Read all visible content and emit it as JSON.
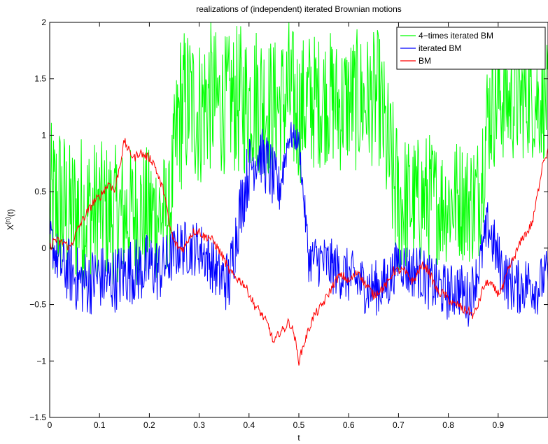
{
  "chart_data": {
    "type": "line",
    "title": "realizations of (independent) iterated Brownian motions",
    "xlabel": "t",
    "ylabel": "X",
    "ylabel_sup": "(n)",
    "ylabel_suffix": "(t)",
    "xlim": [
      0,
      1
    ],
    "ylim": [
      -1.5,
      2
    ],
    "xticks": [
      0,
      0.1,
      0.2,
      0.3,
      0.4,
      0.5,
      0.6,
      0.7,
      0.8,
      0.9
    ],
    "xtick_labels": [
      "0",
      "0.1",
      "0.2",
      "0.3",
      "0.4",
      "0.5",
      "0.6",
      "0.7",
      "0.8",
      "0.9"
    ],
    "yticks": [
      -1.5,
      -1,
      -0.5,
      0,
      0.5,
      1,
      1.5,
      2
    ],
    "ytick_labels": [
      "−1.5",
      "−1",
      "−0.5",
      "0",
      "0.5",
      "1",
      "1.5",
      "2"
    ],
    "grid": false,
    "legend_position": "top-right",
    "series": [
      {
        "name": "4−times iterated BM",
        "color": "#00ff00",
        "x": [
          0,
          0.02,
          0.04,
          0.06,
          0.08,
          0.1,
          0.12,
          0.14,
          0.16,
          0.18,
          0.2,
          0.22,
          0.24,
          0.26,
          0.28,
          0.3,
          0.32,
          0.34,
          0.36,
          0.38,
          0.4,
          0.42,
          0.44,
          0.46,
          0.48,
          0.5,
          0.52,
          0.54,
          0.56,
          0.58,
          0.6,
          0.62,
          0.64,
          0.66,
          0.68,
          0.7,
          0.72,
          0.74,
          0.76,
          0.78,
          0.8,
          0.82,
          0.84,
          0.86,
          0.88,
          0.9,
          0.92,
          0.94,
          0.96,
          0.98,
          1.0
        ],
        "y": [
          0.3,
          0.4,
          0.25,
          0.35,
          0.3,
          0.35,
          0.3,
          0.3,
          0.3,
          0.3,
          0.3,
          0.3,
          0.3,
          1.2,
          1.3,
          1.2,
          1.35,
          1.25,
          1.3,
          1.3,
          1.3,
          1.35,
          1.25,
          1.25,
          1.35,
          1.2,
          1.3,
          1.3,
          1.35,
          1.25,
          1.3,
          1.3,
          1.3,
          1.35,
          0.8,
          0.4,
          0.4,
          0.4,
          0.45,
          0.4,
          0.4,
          0.45,
          0.4,
          0.45,
          1.2,
          1.35,
          1.3,
          1.3,
          1.35,
          1.3,
          1.3
        ],
        "band": [
          0.8,
          0.8,
          0.7,
          0.7,
          0.7,
          0.6,
          0.65,
          0.6,
          0.6,
          0.65,
          0.6,
          0.6,
          0.5,
          0.75,
          0.7,
          0.7,
          0.7,
          0.65,
          0.6,
          0.7,
          0.65,
          0.7,
          0.65,
          0.6,
          0.7,
          0.65,
          0.65,
          0.6,
          0.6,
          0.6,
          0.6,
          0.65,
          0.6,
          0.6,
          0.7,
          0.7,
          0.6,
          0.6,
          0.6,
          0.55,
          0.55,
          0.55,
          0.55,
          0.6,
          0.6,
          0.6,
          0.55,
          0.55,
          0.55,
          0.55,
          0.5
        ]
      },
      {
        "name": "iterated BM",
        "color": "#0000ff",
        "x": [
          0,
          0.02,
          0.04,
          0.06,
          0.08,
          0.1,
          0.12,
          0.14,
          0.16,
          0.18,
          0.2,
          0.22,
          0.24,
          0.26,
          0.28,
          0.3,
          0.32,
          0.34,
          0.36,
          0.38,
          0.4,
          0.42,
          0.44,
          0.46,
          0.48,
          0.5,
          0.52,
          0.54,
          0.56,
          0.58,
          0.6,
          0.62,
          0.64,
          0.66,
          0.68,
          0.7,
          0.72,
          0.74,
          0.76,
          0.78,
          0.8,
          0.82,
          0.84,
          0.86,
          0.88,
          0.9,
          0.92,
          0.94,
          0.96,
          0.98,
          1.0
        ],
        "y": [
          0.1,
          -0.15,
          -0.2,
          -0.3,
          -0.3,
          -0.25,
          -0.3,
          -0.25,
          -0.2,
          -0.2,
          -0.15,
          -0.2,
          -0.1,
          0.0,
          0.0,
          0.0,
          -0.1,
          -0.25,
          -0.3,
          0.3,
          0.7,
          0.85,
          0.7,
          0.5,
          1.0,
          0.95,
          -0.1,
          -0.1,
          -0.15,
          -0.2,
          -0.25,
          -0.3,
          -0.35,
          -0.35,
          -0.3,
          -0.1,
          -0.2,
          -0.2,
          -0.3,
          -0.35,
          -0.4,
          -0.35,
          -0.45,
          -0.2,
          0.2,
          -0.1,
          -0.3,
          -0.35,
          -0.3,
          -0.35,
          -0.2
        ],
        "band": [
          0.2,
          0.25,
          0.3,
          0.3,
          0.3,
          0.3,
          0.3,
          0.3,
          0.3,
          0.3,
          0.3,
          0.3,
          0.25,
          0.25,
          0.25,
          0.25,
          0.25,
          0.25,
          0.3,
          0.3,
          0.3,
          0.25,
          0.3,
          0.25,
          0.15,
          0.1,
          0.2,
          0.25,
          0.25,
          0.25,
          0.25,
          0.25,
          0.25,
          0.25,
          0.25,
          0.2,
          0.25,
          0.25,
          0.25,
          0.25,
          0.25,
          0.25,
          0.25,
          0.2,
          0.25,
          0.25,
          0.25,
          0.25,
          0.25,
          0.25,
          0.2
        ]
      },
      {
        "name": "BM",
        "color": "#ff0000",
        "x": [
          0,
          0.01,
          0.02,
          0.03,
          0.04,
          0.05,
          0.06,
          0.07,
          0.08,
          0.09,
          0.1,
          0.11,
          0.12,
          0.13,
          0.14,
          0.15,
          0.16,
          0.17,
          0.18,
          0.19,
          0.2,
          0.21,
          0.22,
          0.23,
          0.24,
          0.25,
          0.26,
          0.27,
          0.28,
          0.29,
          0.3,
          0.31,
          0.32,
          0.33,
          0.34,
          0.35,
          0.36,
          0.37,
          0.38,
          0.39,
          0.4,
          0.41,
          0.42,
          0.43,
          0.44,
          0.45,
          0.46,
          0.47,
          0.48,
          0.49,
          0.5,
          0.51,
          0.52,
          0.53,
          0.54,
          0.55,
          0.56,
          0.57,
          0.58,
          0.59,
          0.6,
          0.61,
          0.62,
          0.63,
          0.64,
          0.65,
          0.66,
          0.67,
          0.68,
          0.69,
          0.7,
          0.71,
          0.72,
          0.73,
          0.74,
          0.75,
          0.76,
          0.77,
          0.78,
          0.79,
          0.8,
          0.81,
          0.82,
          0.83,
          0.84,
          0.85,
          0.86,
          0.87,
          0.88,
          0.89,
          0.9,
          0.91,
          0.92,
          0.93,
          0.94,
          0.95,
          0.96,
          0.97,
          0.98,
          0.99,
          1.0
        ],
        "y": [
          0.0,
          0.08,
          0.05,
          0.05,
          0.0,
          0.1,
          0.2,
          0.28,
          0.35,
          0.42,
          0.45,
          0.52,
          0.58,
          0.5,
          0.72,
          0.95,
          0.85,
          0.8,
          0.85,
          0.82,
          0.8,
          0.75,
          0.6,
          0.5,
          0.2,
          0.05,
          0.0,
          0.0,
          0.1,
          0.15,
          0.15,
          0.1,
          0.1,
          0.05,
          -0.02,
          -0.1,
          -0.2,
          -0.25,
          -0.28,
          -0.32,
          -0.4,
          -0.5,
          -0.55,
          -0.62,
          -0.7,
          -0.85,
          -0.75,
          -0.72,
          -0.65,
          -0.75,
          -1.0,
          -0.85,
          -0.72,
          -0.6,
          -0.55,
          -0.48,
          -0.4,
          -0.32,
          -0.25,
          -0.25,
          -0.3,
          -0.25,
          -0.2,
          -0.3,
          -0.35,
          -0.42,
          -0.38,
          -0.35,
          -0.3,
          -0.2,
          -0.2,
          -0.2,
          -0.25,
          -0.3,
          -0.2,
          -0.15,
          -0.2,
          -0.3,
          -0.4,
          -0.4,
          -0.45,
          -0.5,
          -0.5,
          -0.55,
          -0.55,
          -0.6,
          -0.5,
          -0.35,
          -0.3,
          -0.35,
          -0.4,
          -0.35,
          -0.2,
          -0.1,
          0.0,
          0.1,
          0.15,
          0.25,
          0.5,
          0.78,
          0.85
        ],
        "band": 0.04
      }
    ]
  }
}
